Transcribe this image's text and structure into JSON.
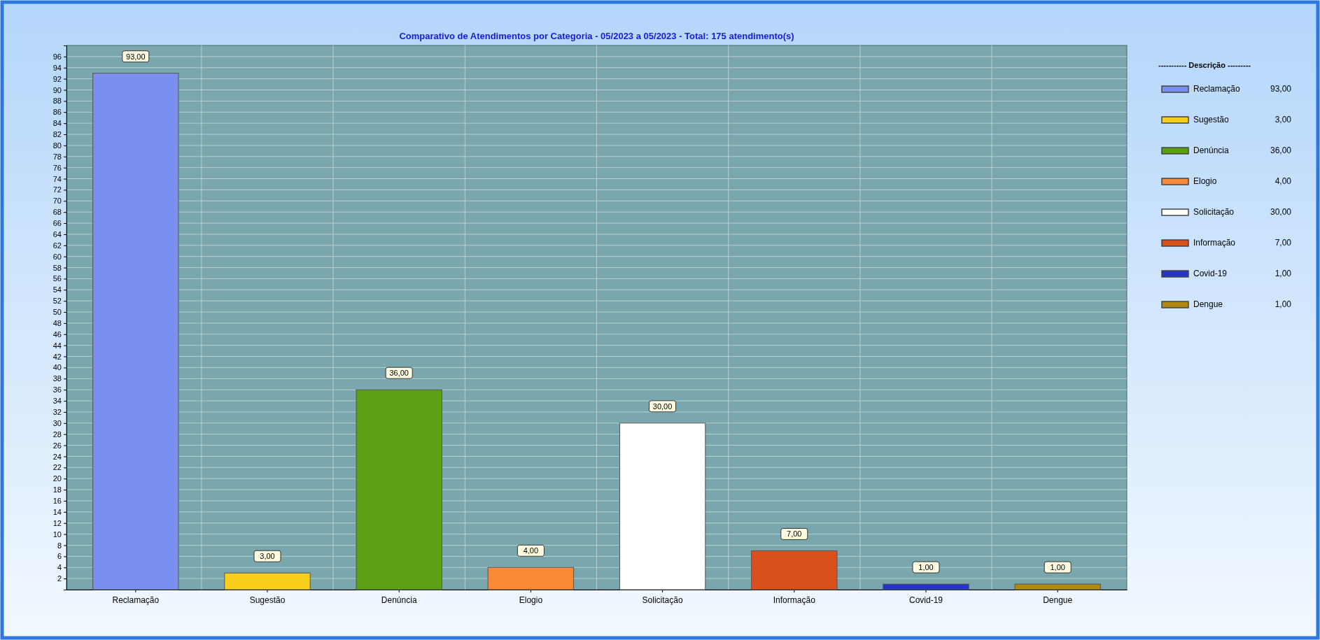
{
  "chart_data": {
    "type": "bar",
    "title": "Comparativo de Atendimentos por Categoria - 05/2023 a 05/2023 - Total: 175 atendimento(s)",
    "categories": [
      "Reclamação",
      "Sugestão",
      "Denúncia",
      "Elogio",
      "Solicitação",
      "Informação",
      "Covid-19",
      "Dengue"
    ],
    "series": [
      {
        "name": "Reclamação",
        "color": "#7b8fee",
        "values": [
          93,
          null,
          null,
          null,
          null,
          null,
          null,
          null
        ],
        "value_labels": [
          "93,00",
          null,
          null,
          null,
          null,
          null,
          null,
          null
        ]
      },
      {
        "name": "Sugestão",
        "color": "#f8cf1c",
        "values": [
          null,
          3,
          null,
          null,
          null,
          null,
          null,
          null
        ],
        "value_labels": [
          null,
          "3,00",
          null,
          null,
          null,
          null,
          null,
          null
        ]
      },
      {
        "name": "Denúncia",
        "color": "#5aa012",
        "values": [
          null,
          null,
          36,
          null,
          null,
          null,
          null,
          null
        ],
        "value_labels": [
          null,
          null,
          "36,00",
          null,
          null,
          null,
          null,
          null
        ]
      },
      {
        "name": "Elogio",
        "color": "#f88a38",
        "values": [
          null,
          null,
          null,
          4,
          null,
          null,
          null,
          null
        ],
        "value_labels": [
          null,
          null,
          null,
          "4,00",
          null,
          null,
          null,
          null
        ]
      },
      {
        "name": "Solicitação",
        "color": "#ffffff",
        "values": [
          null,
          null,
          null,
          null,
          30,
          null,
          null,
          null
        ],
        "value_labels": [
          null,
          null,
          null,
          null,
          "30,00",
          null,
          null,
          null
        ]
      },
      {
        "name": "Informação",
        "color": "#d8501c",
        "values": [
          null,
          null,
          null,
          null,
          null,
          7,
          null,
          null
        ],
        "value_labels": [
          null,
          null,
          null,
          null,
          null,
          "7,00",
          null,
          null
        ]
      },
      {
        "name": "Covid-19",
        "color": "#2434c8",
        "values": [
          null,
          null,
          null,
          null,
          null,
          null,
          1,
          null
        ],
        "value_labels": [
          null,
          null,
          null,
          null,
          null,
          null,
          "1,00",
          null
        ]
      },
      {
        "name": "Dengue",
        "color": "#b08a10",
        "values": [
          null,
          null,
          null,
          null,
          null,
          null,
          null,
          1
        ],
        "value_labels": [
          null,
          null,
          null,
          null,
          null,
          null,
          null,
          "1,00"
        ]
      }
    ],
    "legend_title": "----------- Descrição ---------",
    "legend": "right",
    "ylim": [
      0,
      98
    ],
    "yticks": [
      2,
      4,
      6,
      8,
      10,
      12,
      14,
      16,
      18,
      20,
      22,
      24,
      26,
      28,
      30,
      32,
      34,
      36,
      38,
      40,
      42,
      44,
      46,
      48,
      50,
      52,
      54,
      56,
      58,
      60,
      62,
      64,
      66,
      68,
      70,
      72,
      74,
      76,
      78,
      80,
      82,
      84,
      86,
      88,
      90,
      92,
      94,
      96
    ],
    "grid": true
  }
}
